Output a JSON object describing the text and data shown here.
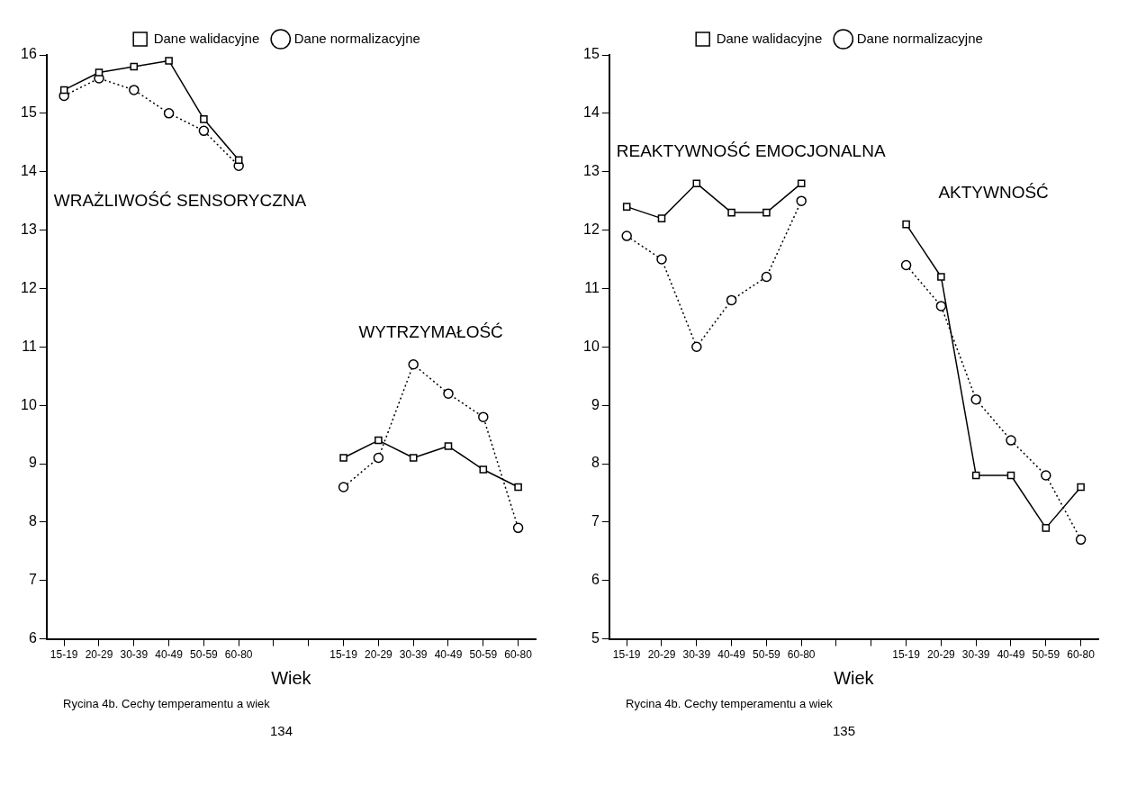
{
  "chart_data": [
    {
      "type": "line",
      "xlabel": "Wiek",
      "categories": [
        "15-19",
        "20-29",
        "30-39",
        "40-49",
        "50-59",
        "60-80",
        null,
        null,
        "15-19",
        "20-29",
        "30-39",
        "40-49",
        "50-59",
        "60-80"
      ],
      "series": [
        {
          "name": "Dane walidacyjne",
          "color": "#000000",
          "marker": "square",
          "line_style": "solid",
          "values": [
            15.4,
            15.7,
            15.8,
            15.9,
            14.9,
            14.2,
            null,
            null,
            9.1,
            9.4,
            9.1,
            9.3,
            8.9,
            8.6
          ]
        },
        {
          "name": "Dane normalizacyjne",
          "color": "#000000",
          "marker": "circle",
          "line_style": "dotted",
          "values": [
            15.3,
            15.6,
            15.4,
            15.0,
            14.7,
            14.1,
            null,
            null,
            8.6,
            9.1,
            10.7,
            10.2,
            9.8,
            7.9
          ]
        }
      ],
      "ylim": [
        6,
        16
      ],
      "yticks": [
        6,
        7,
        8,
        9,
        10,
        11,
        12,
        13,
        14,
        15,
        16
      ],
      "grid": false,
      "legend": "top",
      "annotations": [
        "WRAŻLIWOŚĆ SENSORYCZNA",
        "WYTRZYMAŁOŚĆ",
        "Rycina 4b. Cechy temperamentu a wiek",
        "134"
      ]
    },
    {
      "type": "line",
      "xlabel": "Wiek",
      "categories": [
        "15-19",
        "20-29",
        "30-39",
        "40-49",
        "50-59",
        "60-80",
        null,
        null,
        "15-19",
        "20-29",
        "30-39",
        "40-49",
        "50-59",
        "60-80"
      ],
      "series": [
        {
          "name": "Dane walidacyjne",
          "color": "#000000",
          "marker": "square",
          "line_style": "solid",
          "values": [
            12.4,
            12.2,
            12.8,
            12.3,
            12.3,
            12.8,
            null,
            null,
            12.1,
            11.2,
            7.8,
            7.8,
            6.9,
            7.6
          ]
        },
        {
          "name": "Dane normalizacyjne",
          "color": "#000000",
          "marker": "circle",
          "line_style": "dotted",
          "values": [
            11.9,
            11.5,
            10.0,
            10.8,
            11.2,
            12.5,
            null,
            null,
            11.4,
            10.7,
            9.1,
            8.4,
            7.8,
            6.7
          ]
        }
      ],
      "ylim": [
        5,
        15
      ],
      "yticks": [
        5,
        6,
        7,
        8,
        9,
        10,
        11,
        12,
        13,
        14,
        15
      ],
      "grid": false,
      "legend": "top",
      "annotations": [
        "REAKTYWNOŚĆ EMOCJONALNA",
        "AKTYWNOŚĆ",
        "Rycina 4b. Cechy temperamentu a wiek",
        "135"
      ]
    }
  ]
}
